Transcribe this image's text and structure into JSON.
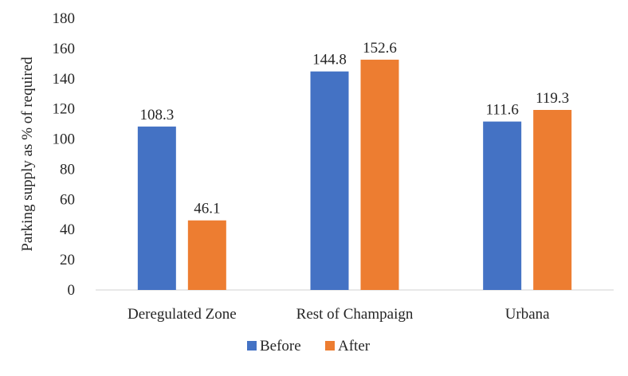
{
  "chart_data": {
    "type": "bar",
    "title": "",
    "xlabel": "",
    "ylabel": "Parking supply as % of required",
    "ylim": [
      0,
      180
    ],
    "ytick_step": 20,
    "yticks": [
      "0",
      "20",
      "40",
      "60",
      "80",
      "100",
      "120",
      "140",
      "160",
      "180"
    ],
    "categories": [
      "Deregulated Zone",
      "Rest of Champaign",
      "Urbana"
    ],
    "series": [
      {
        "name": "Before",
        "color": "#4472C4",
        "values": [
          108.3,
          144.8,
          111.6
        ],
        "labels": [
          "108.3",
          "144.8",
          "111.6"
        ]
      },
      {
        "name": "After",
        "color": "#ED7D31",
        "values": [
          46.1,
          152.6,
          119.3
        ],
        "labels": [
          "46.1",
          "152.6",
          "119.3"
        ]
      }
    ],
    "grid": false,
    "legend_position": "bottom"
  }
}
